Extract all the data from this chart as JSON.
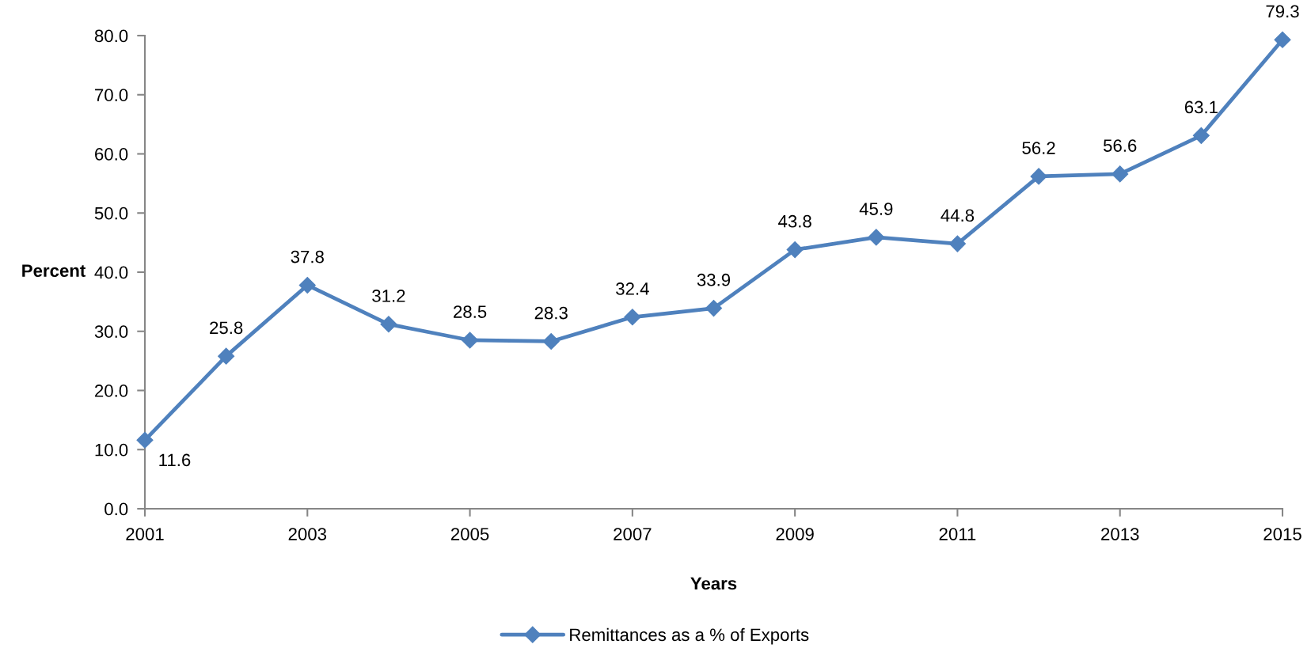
{
  "chart_data": {
    "type": "line",
    "xlabel": "Years",
    "ylabel": "Percent",
    "x": [
      2001,
      2002,
      2003,
      2004,
      2005,
      2006,
      2007,
      2008,
      2009,
      2010,
      2011,
      2012,
      2013,
      2014,
      2015
    ],
    "series": [
      {
        "name": "Remittances as a % of Exports",
        "color": "#4f81bd",
        "values": [
          11.6,
          25.8,
          37.8,
          31.2,
          28.5,
          28.3,
          32.4,
          33.9,
          43.8,
          45.9,
          44.8,
          56.2,
          56.6,
          63.1,
          79.3
        ]
      }
    ],
    "xlim": [
      2001,
      2015
    ],
    "xticks": [
      2001,
      2003,
      2005,
      2007,
      2009,
      2011,
      2013,
      2015
    ],
    "ylim": [
      0,
      80
    ],
    "yticks": [
      {
        "value": 0,
        "label": "0.0"
      },
      {
        "value": 10,
        "label": "10.0"
      },
      {
        "value": 20,
        "label": "20.0"
      },
      {
        "value": 30,
        "label": "30.0"
      },
      {
        "value": 40,
        "label": "40.0"
      },
      {
        "value": 50,
        "label": "50.0"
      },
      {
        "value": 60,
        "label": "60.0"
      },
      {
        "value": 70,
        "label": "70.0"
      },
      {
        "value": 80,
        "label": "80.0"
      }
    ],
    "grid": false,
    "legend": "bottom",
    "marker": "diamond",
    "line_style": "solid",
    "data_labels": true
  }
}
